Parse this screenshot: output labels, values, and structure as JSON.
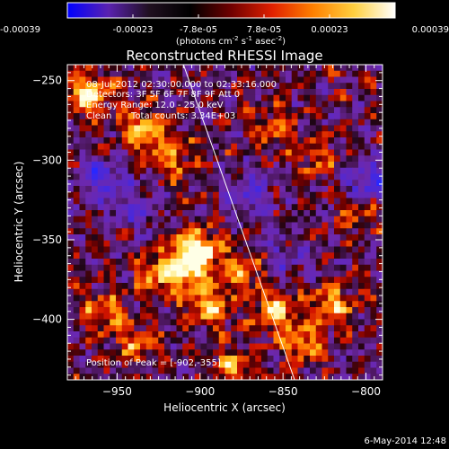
{
  "chart_data": {
    "type": "heatmap",
    "title": "Reconstructed RHESSI Image",
    "xlabel": "Heliocentric X (arcsec)",
    "ylabel": "Heliocentric Y (arcsec)",
    "xlim": [
      -980,
      -790
    ],
    "ylim": [
      -438,
      -240
    ],
    "xticks": [
      -950,
      -900,
      -850,
      -800
    ],
    "yticks": [
      -400,
      -350,
      -300,
      -250
    ],
    "colorbar": {
      "ticks": [
        "-0.00039",
        "-0.00023",
        "-7.8e-05",
        "7.8e-05",
        "0.00023",
        "0.00039"
      ],
      "unit_parts": [
        "(photons cm",
        "-2",
        " s",
        "-1",
        " asec",
        "-2",
        ")"
      ],
      "colors": [
        "#0000ff",
        "#5a22b0",
        "#201020",
        "#000000",
        "#700000",
        "#e02000",
        "#ff8000",
        "#ffd040",
        "#ffffff"
      ]
    },
    "annotations": {
      "time_range": "08-Jul-2012 02:30:00.000 to 02:33:16.000",
      "detectors": "Detectors: 3F 5F 6F 7F 8F 9F Att 0",
      "energy": "Energy Range: 12.0 - 25.0 keV",
      "method": "Clean",
      "counts": "Total counts: 3.34E+03",
      "peak": "Position of Peak = [-902,-355]"
    },
    "limb_line": {
      "points": [
        [
          -910,
          -240
        ],
        [
          -843,
          -438
        ]
      ]
    },
    "hotspots": [
      {
        "x": -967,
        "y": -258,
        "intensity": 0.95
      },
      {
        "x": -935,
        "y": -282,
        "intensity": 0.85
      },
      {
        "x": -915,
        "y": -300,
        "intensity": 0.55
      },
      {
        "x": -902,
        "y": -355,
        "intensity": 1.0
      },
      {
        "x": -907,
        "y": -368,
        "intensity": 0.9
      },
      {
        "x": -925,
        "y": -372,
        "intensity": 0.6
      },
      {
        "x": -895,
        "y": -392,
        "intensity": 0.75
      },
      {
        "x": -873,
        "y": -370,
        "intensity": 0.65
      },
      {
        "x": -855,
        "y": -395,
        "intensity": 0.8
      },
      {
        "x": -820,
        "y": -390,
        "intensity": 0.7
      },
      {
        "x": -838,
        "y": -415,
        "intensity": 0.6
      },
      {
        "x": -958,
        "y": -395,
        "intensity": 0.6
      },
      {
        "x": -940,
        "y": -415,
        "intensity": 0.55
      },
      {
        "x": -855,
        "y": -280,
        "intensity": 0.45
      },
      {
        "x": -830,
        "y": -300,
        "intensity": 0.4
      },
      {
        "x": -805,
        "y": -330,
        "intensity": 0.45
      },
      {
        "x": -880,
        "y": -430,
        "intensity": 0.6
      }
    ],
    "coolspots": [
      {
        "x": -960,
        "y": -310,
        "intensity": 0.6
      },
      {
        "x": -940,
        "y": -330,
        "intensity": 0.5
      },
      {
        "x": -800,
        "y": -315,
        "intensity": 0.7
      },
      {
        "x": -870,
        "y": -320,
        "intensity": 0.5
      },
      {
        "x": -850,
        "y": -360,
        "intensity": 0.4
      }
    ]
  },
  "footer": {
    "date": "6-May-2014 12:48"
  }
}
